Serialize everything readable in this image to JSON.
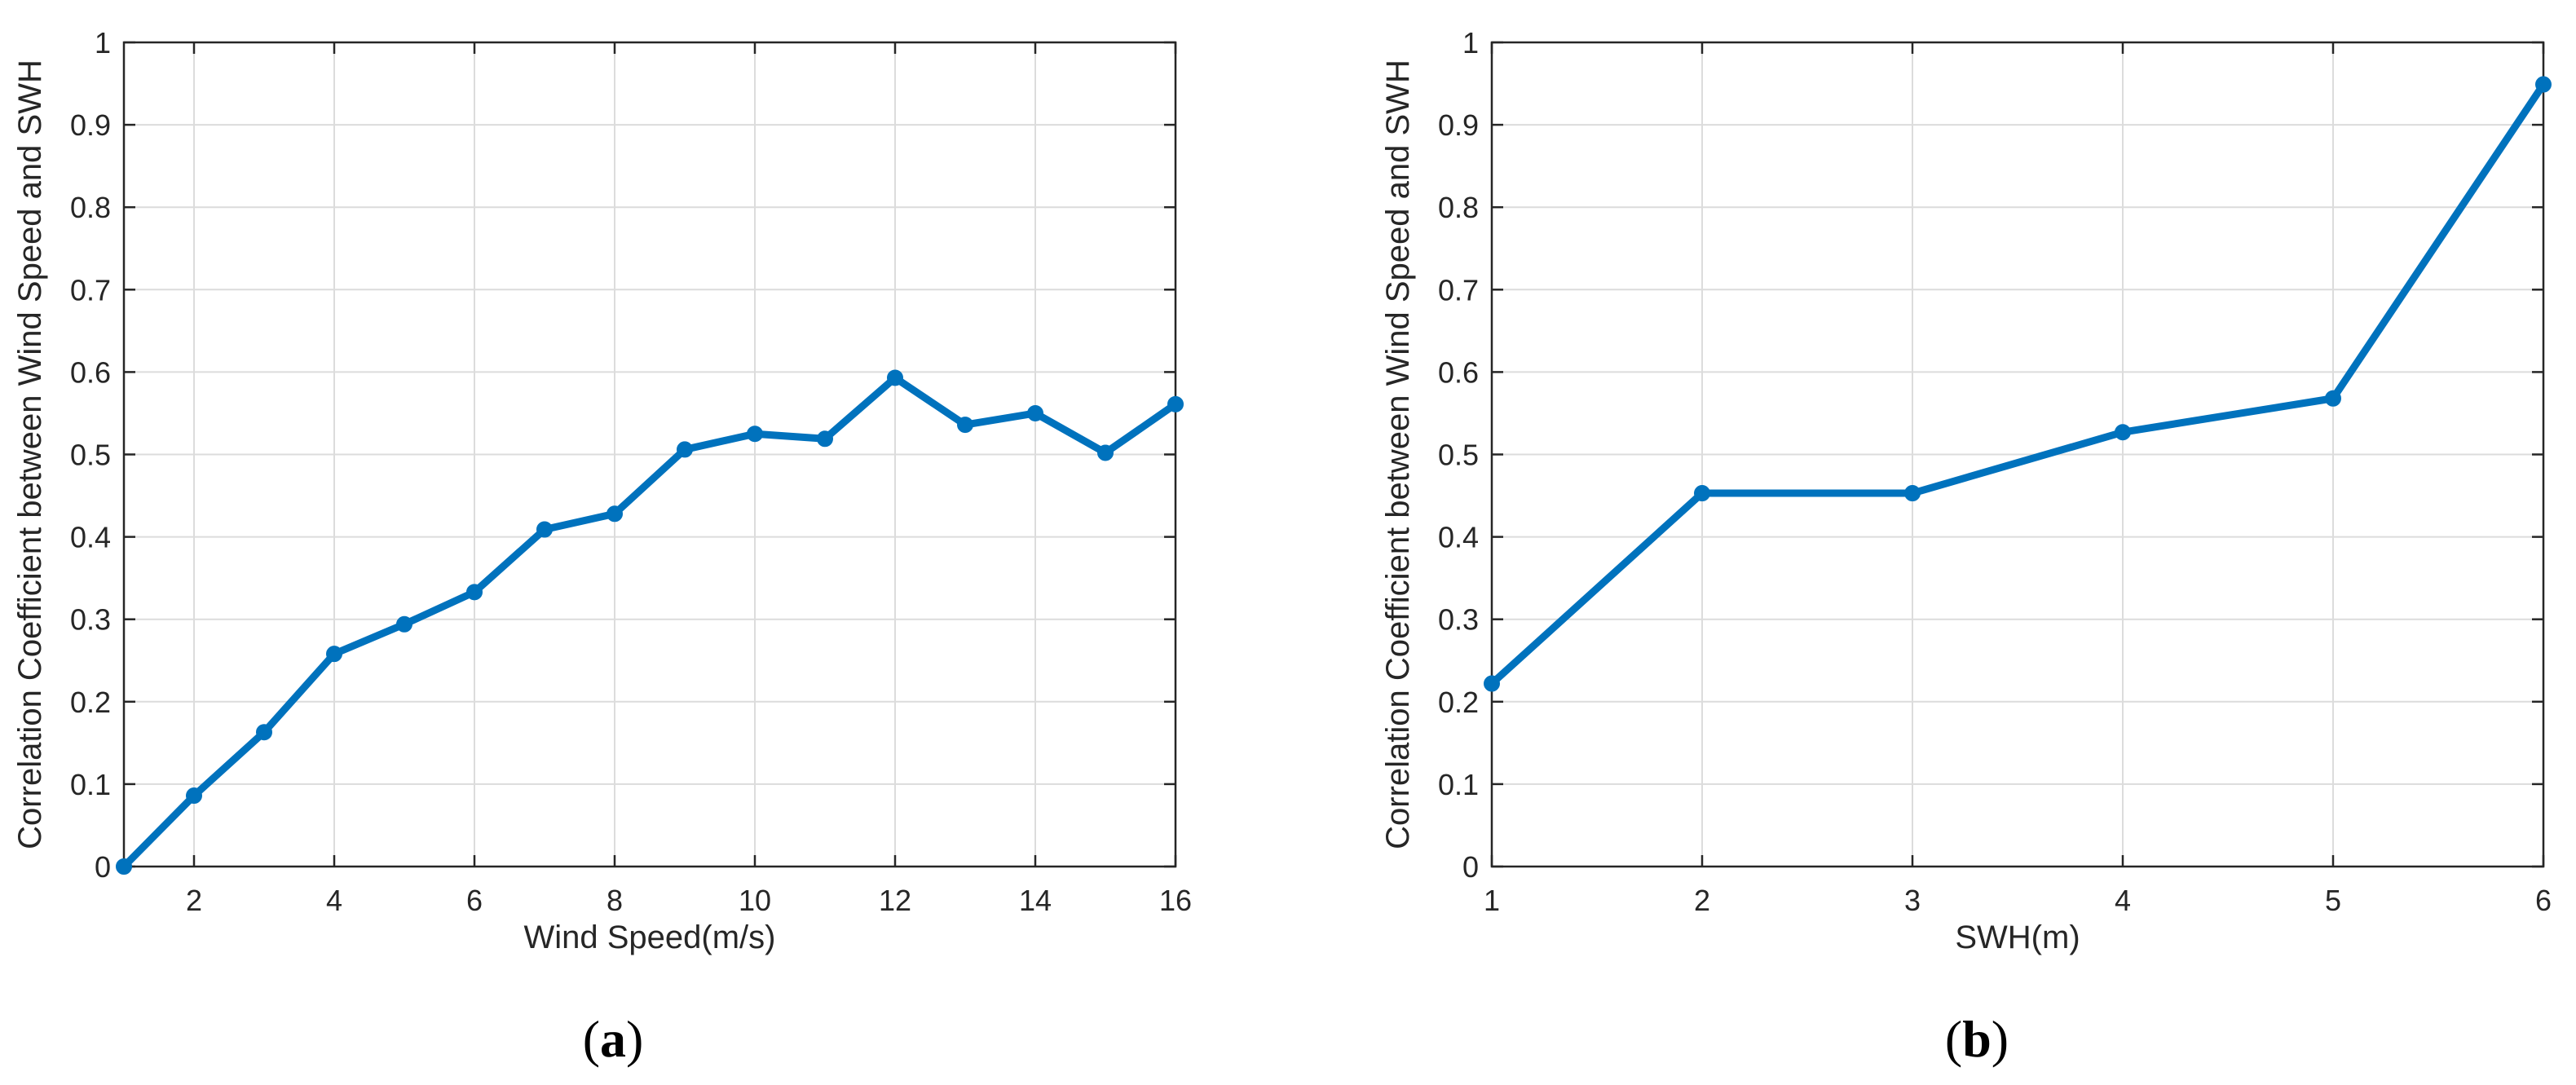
{
  "chart_data": [
    {
      "type": "line",
      "panel_label": "a",
      "xlabel": "Wind Speed(m/s)",
      "ylabel": "Correlation Coefficient between Wind Speed and SWH",
      "xlim": [
        1,
        16
      ],
      "ylim": [
        0,
        1
      ],
      "xticks": [
        2,
        4,
        6,
        8,
        10,
        12,
        14,
        16
      ],
      "yticks": [
        0,
        0.1,
        0.2,
        0.3,
        0.4,
        0.5,
        0.6,
        0.7,
        0.8,
        0.9,
        1
      ],
      "grid": true,
      "series": [
        {
          "color": "#0072bd",
          "x": [
            1,
            2,
            3,
            4,
            5,
            6,
            7,
            8,
            9,
            10,
            11,
            12,
            13,
            14,
            15,
            16
          ],
          "y": [
            0.0,
            0.086,
            0.163,
            0.258,
            0.294,
            0.333,
            0.409,
            0.428,
            0.506,
            0.525,
            0.519,
            0.593,
            0.536,
            0.55,
            0.502,
            0.561
          ]
        }
      ]
    },
    {
      "type": "line",
      "panel_label": "b",
      "xlabel": "SWH(m)",
      "ylabel": "Correlation Coefficient between Wind Speed and SWH",
      "xlim": [
        1,
        6
      ],
      "ylim": [
        0,
        1
      ],
      "xticks": [
        1,
        2,
        3,
        4,
        5,
        6
      ],
      "yticks": [
        0,
        0.1,
        0.2,
        0.3,
        0.4,
        0.5,
        0.6,
        0.7,
        0.8,
        0.9,
        1
      ],
      "grid": true,
      "series": [
        {
          "color": "#0072bd",
          "x": [
            1,
            2,
            3,
            4,
            5,
            6
          ],
          "y": [
            0.222,
            0.453,
            0.453,
            0.527,
            0.568,
            0.949
          ]
        }
      ]
    }
  ]
}
